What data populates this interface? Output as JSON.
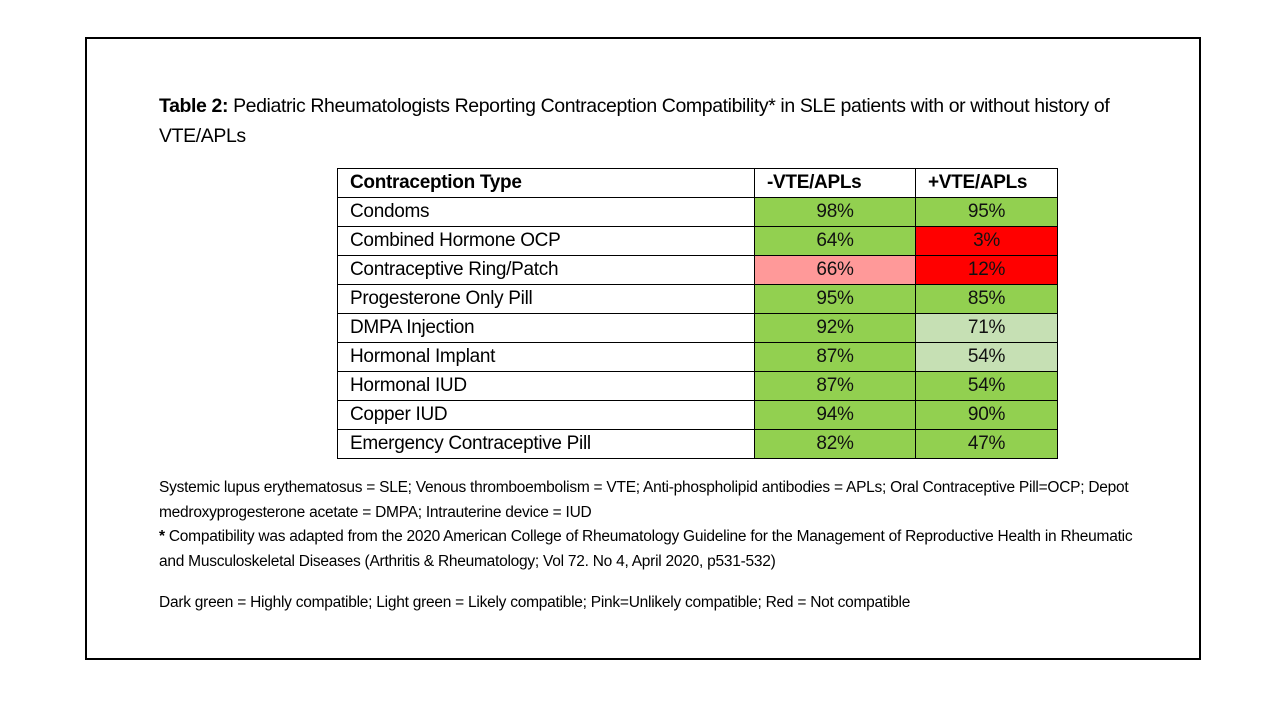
{
  "title": {
    "label": "Table 2:",
    "text": " Pediatric Rheumatologists Reporting Contraception Compatibility* in SLE patients with or without history of VTE/APLs"
  },
  "colors": {
    "highly_compatible": "#92D050",
    "likely_compatible": "#C6E0B4",
    "unlikely_compatible": "#FF9999",
    "not_compatible": "#FF0000"
  },
  "table": {
    "headers": [
      "Contraception Type",
      "-VTE/APLs",
      "+VTE/APLs"
    ],
    "rows": [
      {
        "type": "Condoms",
        "neg": "98%",
        "neg_status": "highly_compatible",
        "pos": "95%",
        "pos_status": "highly_compatible"
      },
      {
        "type": "Combined Hormone OCP",
        "neg": "64%",
        "neg_status": "highly_compatible",
        "pos": "3%",
        "pos_status": "not_compatible"
      },
      {
        "type": "Contraceptive Ring/Patch",
        "neg": "66%",
        "neg_status": "unlikely_compatible",
        "pos": "12%",
        "pos_status": "not_compatible"
      },
      {
        "type": "Progesterone Only Pill",
        "neg": "95%",
        "neg_status": "highly_compatible",
        "pos": "85%",
        "pos_status": "highly_compatible"
      },
      {
        "type": "DMPA Injection",
        "neg": "92%",
        "neg_status": "highly_compatible",
        "pos": "71%",
        "pos_status": "likely_compatible"
      },
      {
        "type": "Hormonal Implant",
        "neg": "87%",
        "neg_status": "highly_compatible",
        "pos": "54%",
        "pos_status": "likely_compatible"
      },
      {
        "type": "Hormonal IUD",
        "neg": "87%",
        "neg_status": "highly_compatible",
        "pos": "54%",
        "pos_status": "highly_compatible"
      },
      {
        "type": "Copper IUD",
        "neg": "94%",
        "neg_status": "highly_compatible",
        "pos": "90%",
        "pos_status": "highly_compatible"
      },
      {
        "type": "Emergency Contraceptive Pill",
        "neg": "82%",
        "neg_status": "highly_compatible",
        "pos": "47%",
        "pos_status": "highly_compatible"
      }
    ]
  },
  "notes": {
    "abbreviations": "Systemic lupus erythematosus = SLE; Venous thromboembolism = VTE; Anti-phospholipid antibodies = APLs; Oral Contraceptive Pill=OCP; Depot medroxyprogesterone acetate = DMPA; Intrauterine device = IUD",
    "asterisk": "*",
    "compatibility_source": " Compatibility was adapted from the 2020 American College of Rheumatology Guideline for the Management of Reproductive Health in Rheumatic and Musculoskeletal Diseases (Arthritis & Rheumatology; Vol 72. No 4, April 2020, p531-532)",
    "legend": "Dark green = Highly compatible; Light green = Likely compatible; Pink=Unlikely compatible; Red = Not compatible"
  }
}
